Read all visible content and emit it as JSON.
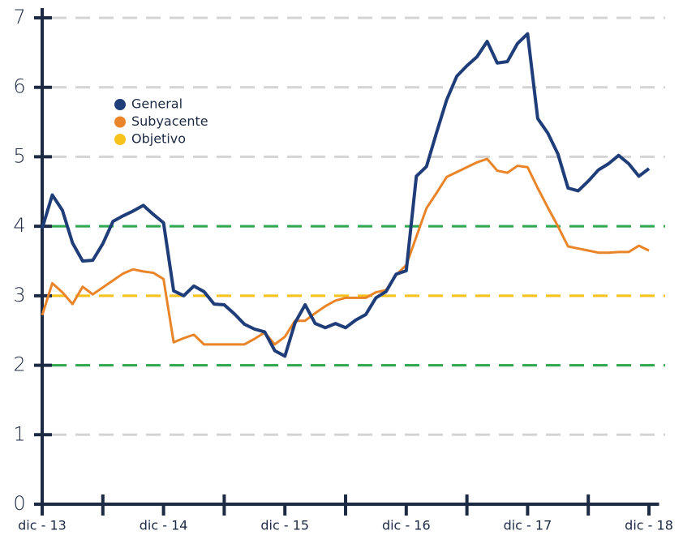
{
  "chart_data": {
    "type": "line",
    "x": [
      0,
      1,
      2,
      3,
      4,
      5,
      6,
      7,
      8,
      9,
      10,
      11,
      12,
      13,
      14,
      15,
      16,
      17,
      18,
      19,
      20,
      21,
      22,
      23,
      24,
      25,
      26,
      27,
      28,
      29,
      30,
      31,
      32,
      33,
      34,
      35,
      36,
      37,
      38,
      39,
      40,
      41,
      42,
      43,
      44,
      45,
      46,
      47,
      48,
      49,
      50,
      51,
      52,
      53,
      54,
      55,
      56,
      57,
      58,
      59,
      60
    ],
    "series": [
      {
        "name": "General",
        "color": "#1f3d78",
        "values": [
          3.97,
          4.45,
          4.23,
          3.76,
          3.5,
          3.51,
          3.75,
          4.07,
          4.15,
          4.22,
          4.3,
          4.17,
          4.05,
          3.07,
          3.0,
          3.14,
          3.06,
          2.88,
          2.87,
          2.74,
          2.59,
          2.52,
          2.48,
          2.21,
          2.13,
          2.61,
          2.87,
          2.6,
          2.54,
          2.6,
          2.54,
          2.65,
          2.73,
          2.97,
          3.06,
          3.31,
          3.36,
          4.72,
          4.86,
          5.35,
          5.82,
          6.16,
          6.31,
          6.44,
          6.66,
          6.35,
          6.37,
          6.63,
          6.77,
          5.55,
          5.34,
          5.04,
          4.55,
          4.51,
          4.65,
          4.81,
          4.9,
          5.02,
          4.9,
          4.72,
          4.83
        ]
      },
      {
        "name": "Subyacente",
        "color": "#ea8428",
        "values": [
          2.72,
          3.18,
          3.05,
          2.88,
          3.13,
          3.02,
          3.12,
          3.22,
          3.32,
          3.38,
          3.35,
          3.33,
          3.24,
          2.33,
          2.39,
          2.44,
          2.3,
          2.3,
          2.3,
          2.3,
          2.3,
          2.38,
          2.47,
          2.3,
          2.41,
          2.64,
          2.64,
          2.75,
          2.85,
          2.93,
          2.97,
          2.97,
          2.97,
          3.05,
          3.08,
          3.3,
          3.44,
          3.85,
          4.26,
          4.48,
          4.71,
          4.78,
          4.85,
          4.92,
          4.97,
          4.8,
          4.77,
          4.87,
          4.85,
          4.55,
          4.27,
          4.0,
          3.71,
          3.68,
          3.65,
          3.62,
          3.62,
          3.63,
          3.63,
          3.72,
          3.65
        ]
      }
    ],
    "reference_lines": [
      {
        "value": 2,
        "color": "#2fa84f"
      },
      {
        "value": 4,
        "color": "#2fa84f"
      },
      {
        "name": "Objetivo",
        "value": 3,
        "color": "#f7c21a"
      }
    ],
    "xlim": [
      0,
      61
    ],
    "xticks": [
      {
        "value": 0,
        "label": "dic - 13"
      },
      {
        "value": 12,
        "label": "dic - 14"
      },
      {
        "value": 24,
        "label": "dic - 15"
      },
      {
        "value": 36,
        "label": "dic - 16"
      },
      {
        "value": 48,
        "label": "dic - 17"
      },
      {
        "value": 60,
        "label": "dic - 18"
      }
    ],
    "xminor_ticks": [
      6,
      18,
      30,
      42,
      54
    ],
    "ylim": [
      0,
      7
    ],
    "yticks": [
      0,
      1,
      2,
      3,
      4,
      5,
      6,
      7
    ],
    "grid": true
  }
}
